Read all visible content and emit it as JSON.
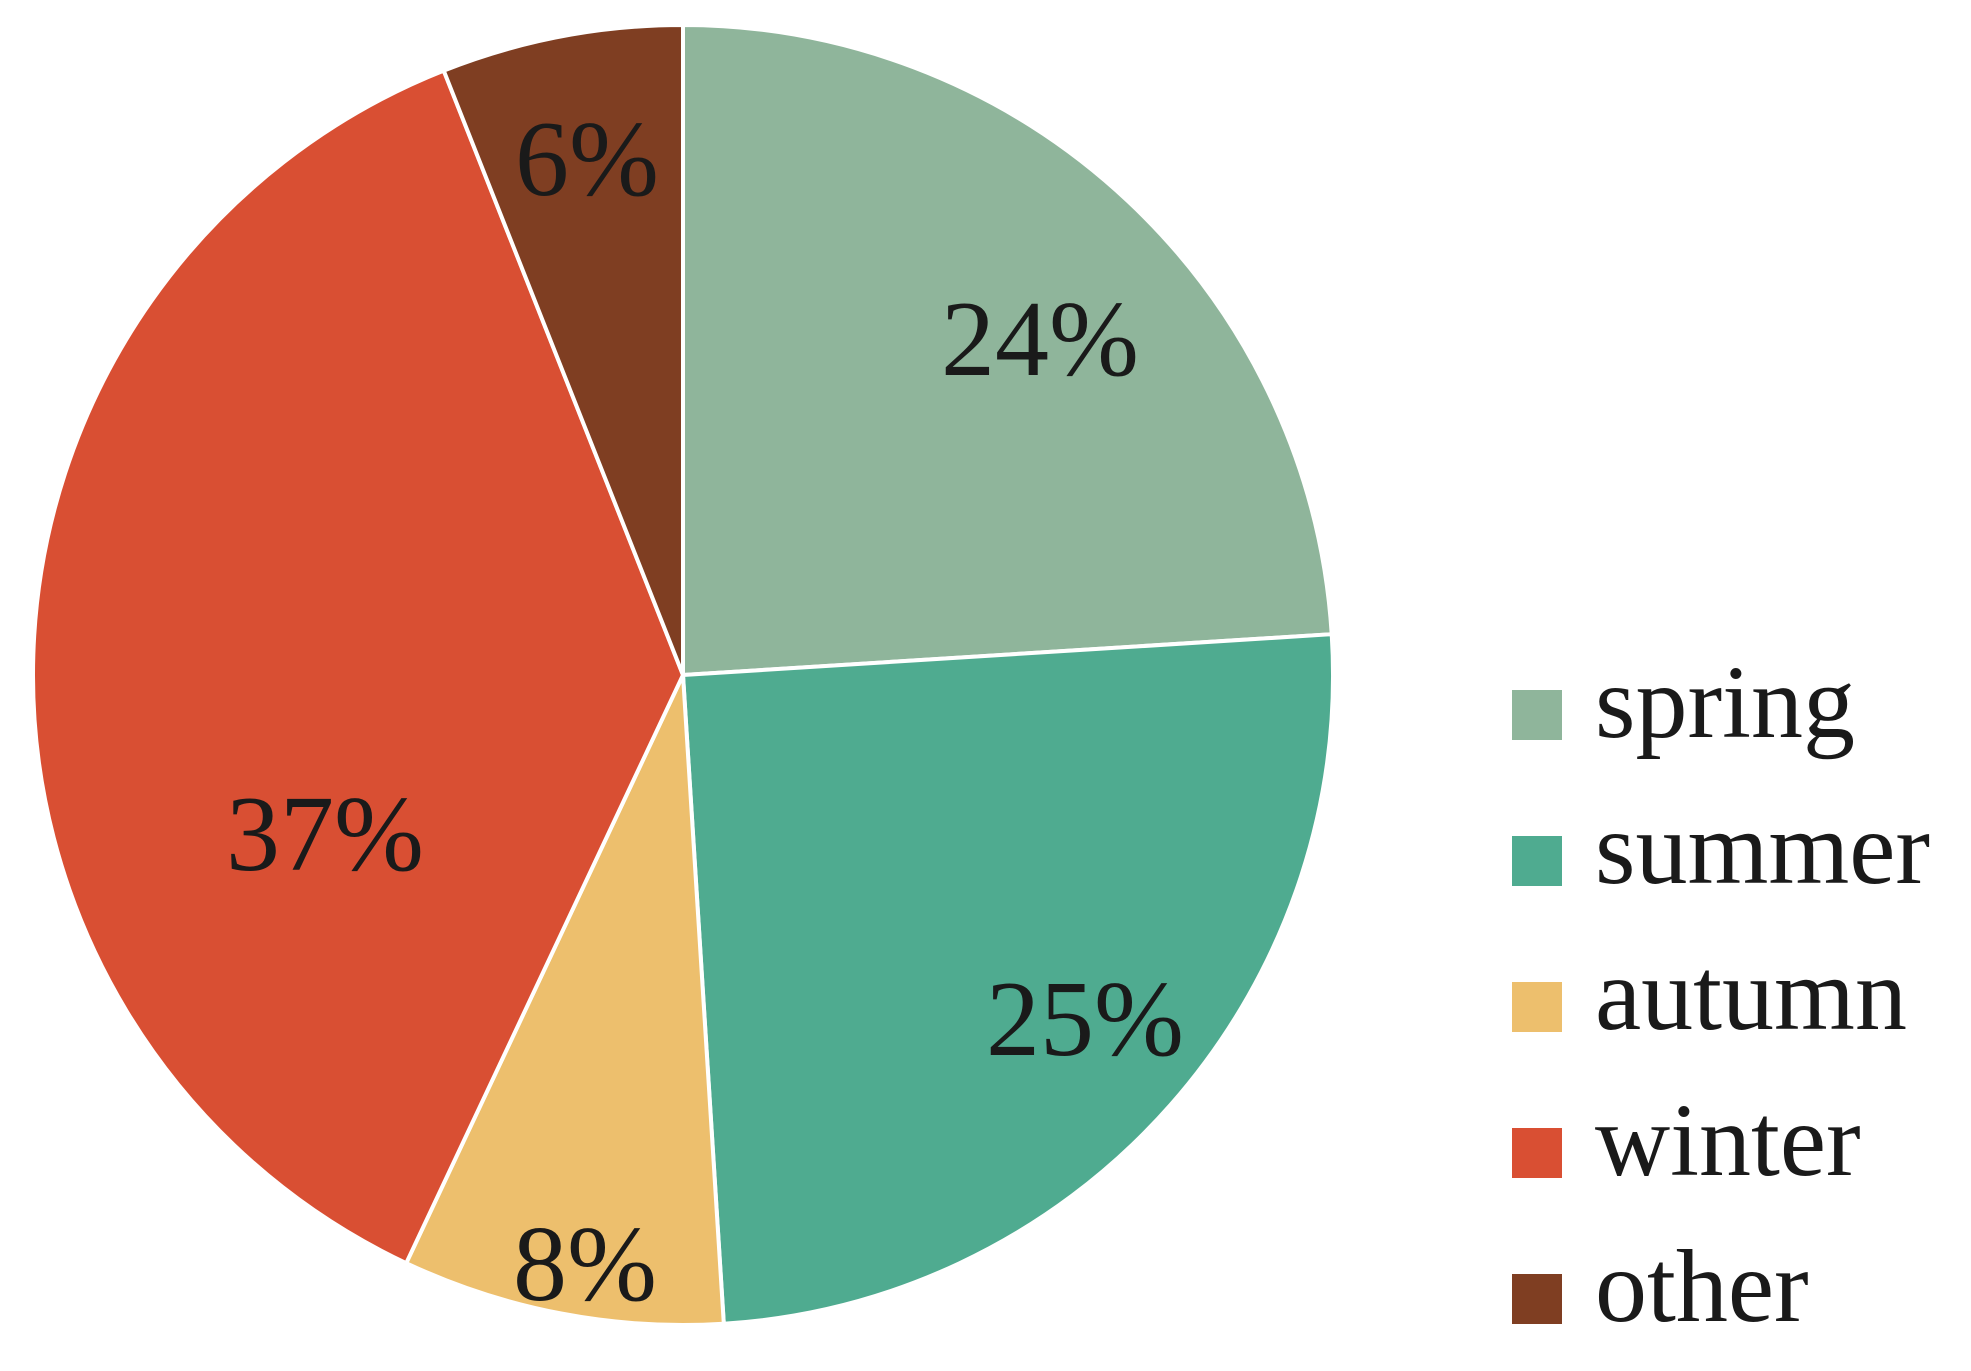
{
  "chart_data": {
    "type": "pie",
    "title": "",
    "start_angle_deg": 0,
    "direction": "clockwise",
    "legend_position": "right-bottom",
    "slices": [
      {
        "name": "spring",
        "value": 24,
        "label": "24%",
        "color": "#8fb59b"
      },
      {
        "name": "summer",
        "value": 25,
        "label": "25%",
        "color": "#4fab90"
      },
      {
        "name": "autumn",
        "value": 8,
        "label": "8%",
        "color": "#edbf6d"
      },
      {
        "name": "winter",
        "value": 37,
        "label": "37%",
        "color": "#d94f33"
      },
      {
        "name": "other",
        "value": 6,
        "label": "6%",
        "color": "#7f3e22"
      }
    ]
  }
}
